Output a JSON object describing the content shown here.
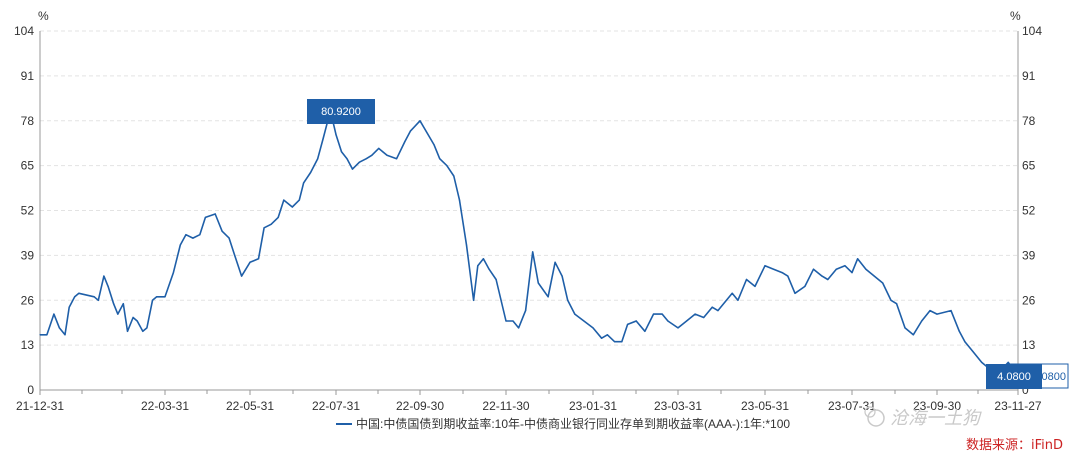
{
  "chart_data": {
    "type": "line",
    "y_unit_left": "%",
    "y_unit_right": "%",
    "ylim": [
      0,
      104
    ],
    "y_ticks": [
      0,
      13,
      26,
      39,
      52,
      65,
      78,
      91,
      104
    ],
    "x_ticks": [
      "21-12-31",
      "22-03-31",
      "22-05-31",
      "22-07-31",
      "22-09-30",
      "22-11-30",
      "23-01-31",
      "23-03-31",
      "23-05-31",
      "23-07-31",
      "23-09-30",
      "23-11-27"
    ],
    "grid": true,
    "legend_position": "bottom-center",
    "series": [
      {
        "name": "中国:中债国债到期收益率:10年-中债商业银行同业存单到期收益率(AAA-):1年:*100",
        "color": "#1f5fa8",
        "x": [
          "2021-12-31",
          "2022-01-05",
          "2022-01-10",
          "2022-01-14",
          "2022-01-18",
          "2022-01-21",
          "2022-01-25",
          "2022-01-28",
          "2022-02-08",
          "2022-02-11",
          "2022-02-15",
          "2022-02-18",
          "2022-02-22",
          "2022-02-25",
          "2022-03-01",
          "2022-03-04",
          "2022-03-08",
          "2022-03-11",
          "2022-03-15",
          "2022-03-18",
          "2022-03-22",
          "2022-03-25",
          "2022-03-31",
          "2022-04-06",
          "2022-04-11",
          "2022-04-15",
          "2022-04-20",
          "2022-04-25",
          "2022-04-29",
          "2022-05-06",
          "2022-05-11",
          "2022-05-16",
          "2022-05-20",
          "2022-05-25",
          "2022-05-31",
          "2022-06-06",
          "2022-06-10",
          "2022-06-15",
          "2022-06-20",
          "2022-06-24",
          "2022-06-30",
          "2022-07-05",
          "2022-07-08",
          "2022-07-13",
          "2022-07-18",
          "2022-07-22",
          "2022-07-27",
          "2022-07-31",
          "2022-08-04",
          "2022-08-08",
          "2022-08-12",
          "2022-08-17",
          "2022-08-22",
          "2022-08-26",
          "2022-08-31",
          "2022-09-06",
          "2022-09-13",
          "2022-09-19",
          "2022-09-23",
          "2022-09-30",
          "2022-10-10",
          "2022-10-14",
          "2022-10-19",
          "2022-10-24",
          "2022-10-28",
          "2022-11-02",
          "2022-11-07",
          "2022-11-10",
          "2022-11-14",
          "2022-11-18",
          "2022-11-23",
          "2022-11-30",
          "2022-12-05",
          "2022-12-09",
          "2022-12-14",
          "2022-12-19",
          "2022-12-23",
          "2022-12-30",
          "2023-01-04",
          "2023-01-09",
          "2023-01-13",
          "2023-01-18",
          "2023-01-31",
          "2023-02-06",
          "2023-02-10",
          "2023-02-15",
          "2023-02-20",
          "2023-02-24",
          "2023-03-02",
          "2023-03-08",
          "2023-03-14",
          "2023-03-20",
          "2023-03-24",
          "2023-03-31",
          "2023-04-06",
          "2023-04-12",
          "2023-04-18",
          "2023-04-24",
          "2023-04-28",
          "2023-05-08",
          "2023-05-12",
          "2023-05-18",
          "2023-05-24",
          "2023-05-31",
          "2023-06-06",
          "2023-06-12",
          "2023-06-16",
          "2023-06-21",
          "2023-06-28",
          "2023-07-04",
          "2023-07-10",
          "2023-07-14",
          "2023-07-20",
          "2023-07-26",
          "2023-07-31",
          "2023-08-04",
          "2023-08-10",
          "2023-08-16",
          "2023-08-22",
          "2023-08-28",
          "2023-09-01",
          "2023-09-07",
          "2023-09-13",
          "2023-09-19",
          "2023-09-25",
          "2023-09-30",
          "2023-10-10",
          "2023-10-16",
          "2023-10-20",
          "2023-10-26",
          "2023-11-01",
          "2023-11-07",
          "2023-11-13",
          "2023-11-20",
          "2023-11-27"
        ],
        "y": [
          16,
          16,
          22,
          18,
          16,
          24,
          27,
          28,
          27,
          26,
          33,
          30,
          25,
          22,
          25,
          17,
          21,
          20,
          17,
          18,
          26,
          27,
          27,
          34,
          42,
          45,
          44,
          45,
          50,
          51,
          46,
          44,
          39,
          33,
          37,
          38,
          47,
          48,
          50,
          55,
          53,
          55,
          60,
          63,
          67,
          73,
          80.92,
          74,
          69,
          67,
          64,
          66,
          67,
          68,
          70,
          68,
          67,
          72,
          75,
          78,
          71,
          67,
          65,
          62,
          55,
          42,
          26,
          36,
          38,
          35,
          32,
          20,
          20,
          18,
          23,
          40,
          31,
          27,
          37,
          33,
          26,
          22,
          18,
          15,
          16,
          14,
          14,
          19,
          20,
          17,
          22,
          22,
          20,
          18,
          20,
          22,
          21,
          24,
          23,
          28,
          26,
          32,
          30,
          36,
          35,
          34,
          33,
          28,
          30,
          35,
          33,
          32,
          35,
          36,
          34,
          38,
          35,
          33,
          31,
          26,
          25,
          18,
          16,
          20,
          23,
          22,
          23,
          17,
          14,
          11,
          8,
          6,
          5,
          8,
          4.08
        ]
      }
    ],
    "annotations": [
      "80.9200",
      "4.0800",
      ".0800"
    ]
  },
  "legend": {
    "label": "中国:中债国债到期收益率:10年-中债商业银行同业存单到期收益率(AAA-):1年:*100"
  },
  "source_label": "数据来源：iFinD",
  "watermark_text": "沧海一土狗",
  "colors": {
    "line": "#1f5fa8",
    "callout_bg": "#1f5fa8",
    "grid": "#e3e3e3",
    "axis": "#999999",
    "source": "#cc2222"
  }
}
